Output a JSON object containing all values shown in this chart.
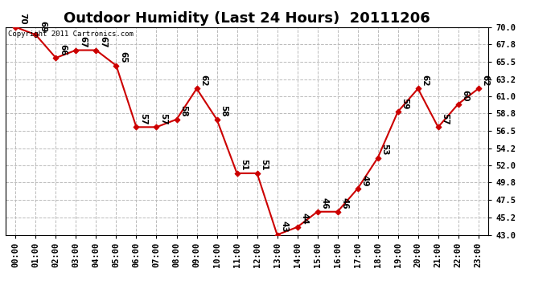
{
  "title": "Outdoor Humidity (Last 24 Hours)  20111206",
  "copyright_text": "Copyright 2011 Cartronics.com",
  "x_labels": [
    "00:00",
    "01:00",
    "02:00",
    "03:00",
    "04:00",
    "05:00",
    "06:00",
    "07:00",
    "08:00",
    "09:00",
    "10:00",
    "11:00",
    "12:00",
    "13:00",
    "14:00",
    "15:00",
    "16:00",
    "17:00",
    "18:00",
    "19:00",
    "20:00",
    "21:00",
    "22:00",
    "23:00"
  ],
  "y_values": [
    70,
    69,
    66,
    67,
    67,
    65,
    57,
    57,
    58,
    62,
    58,
    51,
    51,
    43,
    44,
    46,
    46,
    49,
    53,
    59,
    62,
    57,
    60,
    62
  ],
  "point_labels": [
    "70",
    "69",
    "66",
    "67",
    "67",
    "65",
    "57",
    "57",
    "58",
    "62",
    "58",
    "51",
    "51",
    "43",
    "44",
    "46",
    "46",
    "49",
    "53",
    "59",
    "62",
    "57",
    "60",
    "62"
  ],
  "ylim_min": 43.0,
  "ylim_max": 70.0,
  "yticks": [
    43.0,
    45.2,
    47.5,
    49.8,
    52.0,
    54.2,
    56.5,
    58.8,
    61.0,
    63.2,
    65.5,
    67.8,
    70.0
  ],
  "line_color": "#cc0000",
  "marker_color": "#cc0000",
  "bg_color": "#ffffff",
  "grid_color": "#bbbbbb",
  "title_fontsize": 13,
  "label_fontsize": 7.5,
  "point_label_fontsize": 7.5,
  "copyright_fontsize": 6.5
}
